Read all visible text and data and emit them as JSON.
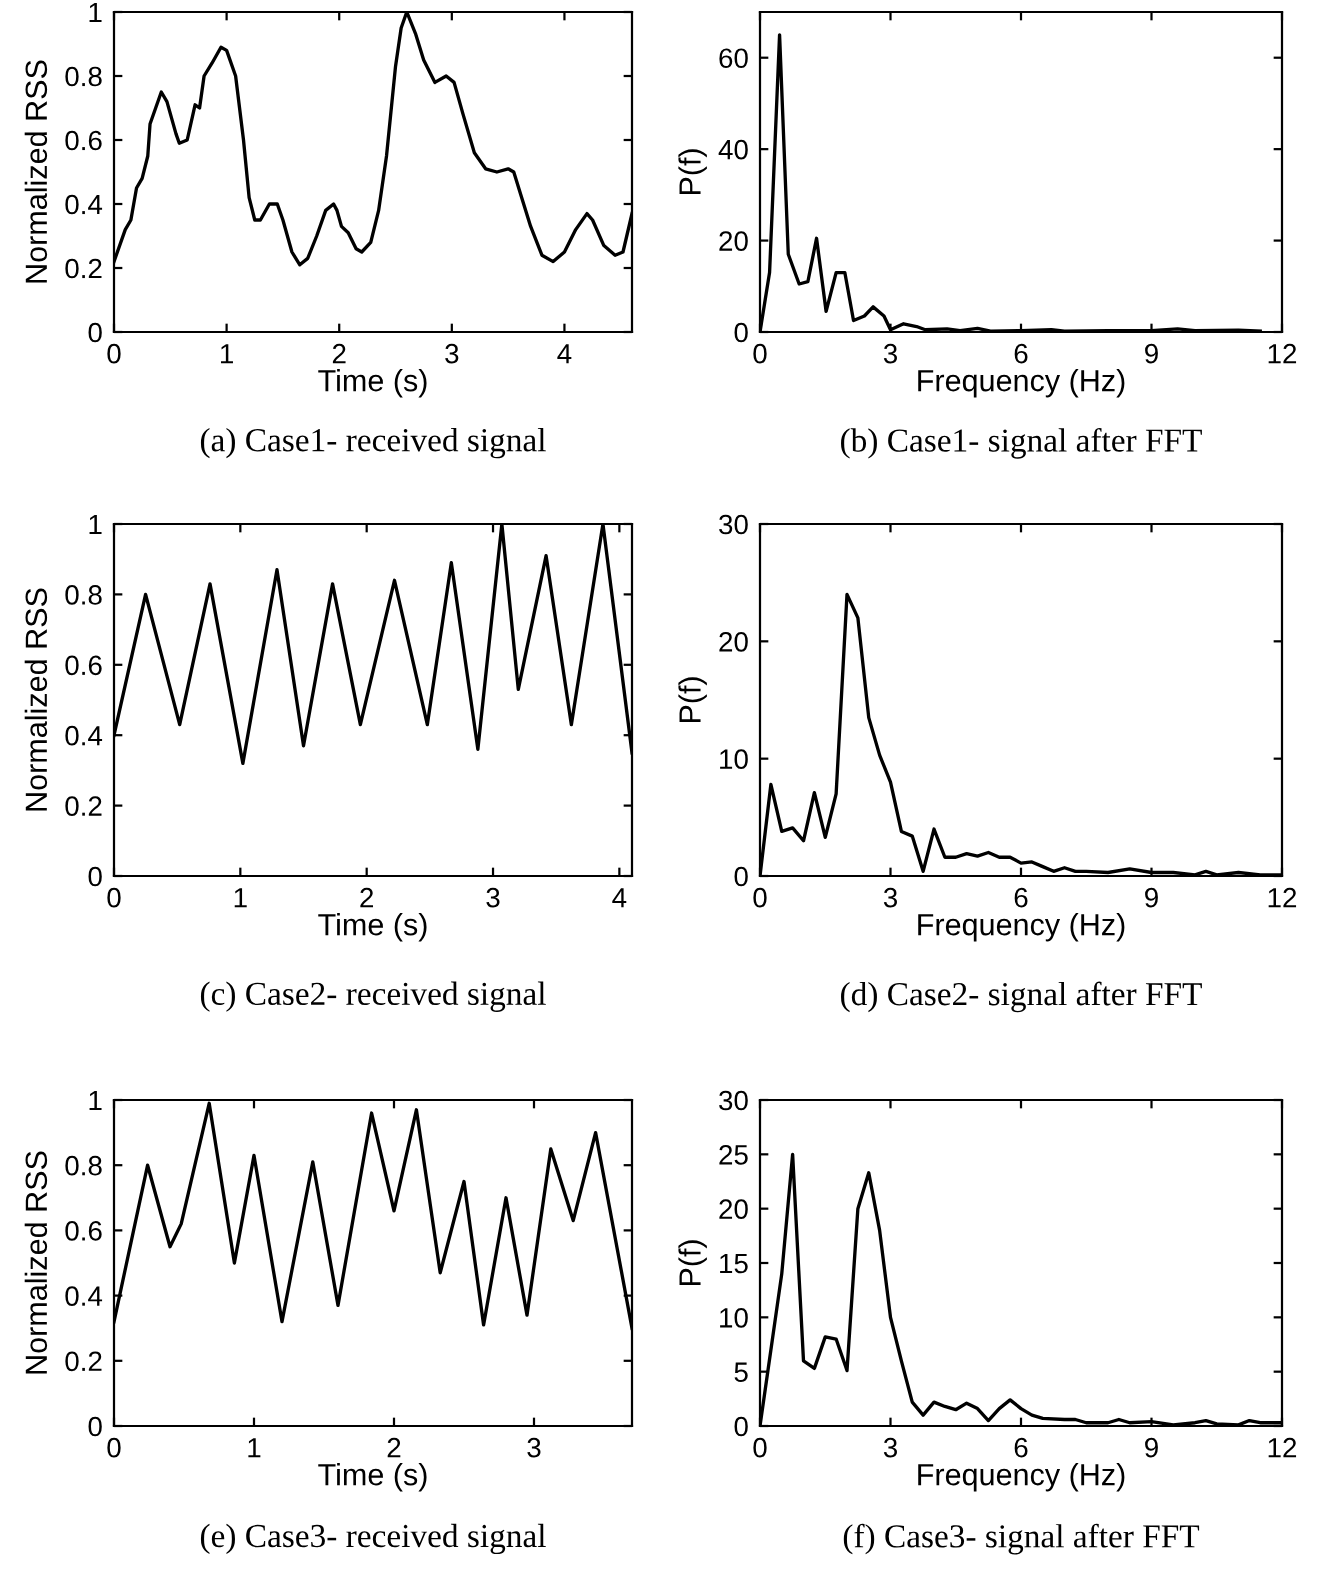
{
  "chart_data": [
    {
      "type": "line",
      "title": "(a) Case1- received signal",
      "xlabel": "Time (s)",
      "ylabel": "Normalized RSS",
      "xlim": [
        0,
        4.6
      ],
      "xticks": [
        0,
        1,
        2,
        3,
        4
      ],
      "ylim": [
        0,
        1
      ],
      "yticks": [
        0,
        0.2,
        0.4,
        0.6,
        0.8,
        1
      ],
      "series": [
        {
          "color": "#000000",
          "x": [
            0,
            0.1,
            0.15,
            0.2,
            0.25,
            0.3,
            0.32,
            0.37,
            0.42,
            0.47,
            0.55,
            0.58,
            0.65,
            0.72,
            0.76,
            0.8,
            0.87,
            0.95,
            1.0,
            1.08,
            1.15,
            1.2,
            1.25,
            1.3,
            1.38,
            1.45,
            1.5,
            1.58,
            1.65,
            1.72,
            1.8,
            1.88,
            1.95,
            1.98,
            2.02,
            2.08,
            2.15,
            2.2,
            2.28,
            2.35,
            2.42,
            2.5,
            2.55,
            2.6,
            2.68,
            2.75,
            2.85,
            2.95,
            3.02,
            3.1,
            3.2,
            3.3,
            3.4,
            3.5,
            3.55,
            3.62,
            3.7,
            3.8,
            3.9,
            4.0,
            4.1,
            4.2,
            4.25,
            4.35,
            4.45,
            4.52,
            4.6
          ],
          "values": [
            0.22,
            0.32,
            0.35,
            0.45,
            0.48,
            0.55,
            0.65,
            0.7,
            0.75,
            0.72,
            0.62,
            0.59,
            0.6,
            0.71,
            0.7,
            0.8,
            0.84,
            0.89,
            0.88,
            0.8,
            0.6,
            0.42,
            0.35,
            0.35,
            0.4,
            0.4,
            0.35,
            0.25,
            0.21,
            0.23,
            0.3,
            0.38,
            0.4,
            0.38,
            0.33,
            0.31,
            0.26,
            0.25,
            0.28,
            0.38,
            0.55,
            0.83,
            0.95,
            1.0,
            0.93,
            0.85,
            0.78,
            0.8,
            0.78,
            0.68,
            0.56,
            0.51,
            0.5,
            0.51,
            0.5,
            0.42,
            0.33,
            0.24,
            0.22,
            0.25,
            0.32,
            0.37,
            0.35,
            0.27,
            0.24,
            0.25,
            0.37
          ]
        }
      ]
    },
    {
      "type": "line",
      "title": "(b) Case1- signal after FFT",
      "xlabel": "Frequency (Hz)",
      "ylabel": "P(f)",
      "xlim": [
        0,
        12
      ],
      "xticks": [
        0,
        3,
        6,
        9,
        12
      ],
      "ylim": [
        0,
        70
      ],
      "yticks": [
        0,
        20,
        40,
        60
      ],
      "series": [
        {
          "color": "#000000",
          "x": [
            0,
            0.22,
            0.45,
            0.65,
            0.9,
            1.1,
            1.3,
            1.52,
            1.75,
            1.95,
            2.15,
            2.4,
            2.6,
            2.85,
            3.0,
            3.3,
            3.6,
            3.8,
            4.3,
            4.6,
            5.0,
            5.3,
            6,
            6.7,
            7,
            8,
            9,
            9.6,
            10,
            11,
            11.5
          ],
          "values": [
            0,
            13,
            65,
            17,
            10.5,
            11,
            20.5,
            4.5,
            13,
            13,
            2.5,
            3.5,
            5.5,
            3.5,
            0.5,
            1.8,
            1.2,
            0.5,
            0.7,
            0.3,
            0.8,
            0.2,
            0.3,
            0.5,
            0.2,
            0.3,
            0.3,
            0.7,
            0.3,
            0.4,
            0.2
          ]
        }
      ]
    },
    {
      "type": "line",
      "title": "(c) Case2- received signal",
      "xlabel": "Time (s)",
      "ylabel": "Normalized RSS",
      "xlim": [
        0,
        4.1
      ],
      "xticks": [
        0,
        1,
        2,
        3,
        4
      ],
      "ylim": [
        0,
        1
      ],
      "yticks": [
        0,
        0.2,
        0.4,
        0.6,
        0.8,
        1
      ],
      "series": [
        {
          "color": "#000000",
          "x": [
            0,
            0.25,
            0.52,
            0.76,
            1.02,
            1.29,
            1.5,
            1.73,
            1.95,
            2.22,
            2.48,
            2.67,
            2.88,
            3.07,
            3.2,
            3.42,
            3.62,
            3.87,
            4.1
          ],
          "values": [
            0.4,
            0.8,
            0.43,
            0.83,
            0.32,
            0.87,
            0.37,
            0.83,
            0.43,
            0.84,
            0.43,
            0.89,
            0.36,
            1.0,
            0.53,
            0.91,
            0.43,
            1.0,
            0.35
          ]
        }
      ]
    },
    {
      "type": "line",
      "title": "(d) Case2- signal after FFT",
      "xlabel": "Frequency (Hz)",
      "ylabel": "P(f)",
      "xlim": [
        0,
        12
      ],
      "xticks": [
        0,
        3,
        6,
        9,
        12
      ],
      "ylim": [
        0,
        30
      ],
      "yticks": [
        0,
        10,
        20,
        30
      ],
      "series": [
        {
          "color": "#000000",
          "x": [
            0,
            0.25,
            0.5,
            0.75,
            1.0,
            1.25,
            1.5,
            1.75,
            2.0,
            2.25,
            2.5,
            2.75,
            3.0,
            3.25,
            3.5,
            3.75,
            4.0,
            4.25,
            4.5,
            4.75,
            5.0,
            5.25,
            5.5,
            5.75,
            6.0,
            6.25,
            6.5,
            6.75,
            7.0,
            7.25,
            7.5,
            8,
            8.5,
            9,
            9.5,
            10,
            10.25,
            10.5,
            11,
            11.5,
            12
          ],
          "values": [
            0,
            7.8,
            3.8,
            4.1,
            3.0,
            7.1,
            3.3,
            7.0,
            24,
            22,
            13.5,
            10.3,
            8,
            3.8,
            3.4,
            0.4,
            4.0,
            1.6,
            1.6,
            1.9,
            1.7,
            2.0,
            1.6,
            1.6,
            1.1,
            1.2,
            0.8,
            0.4,
            0.7,
            0.4,
            0.4,
            0.3,
            0.6,
            0.3,
            0.3,
            0.1,
            0.4,
            0.1,
            0.3,
            0.1,
            0.1
          ]
        }
      ]
    },
    {
      "type": "line",
      "title": "(e) Case3- received signal",
      "xlabel": "Time (s)",
      "ylabel": "Normalized RSS",
      "xlim": [
        0,
        3.7
      ],
      "xticks": [
        0,
        1,
        2,
        3
      ],
      "ylim": [
        0,
        1
      ],
      "yticks": [
        0,
        0.2,
        0.4,
        0.6,
        0.8,
        1
      ],
      "series": [
        {
          "color": "#000000",
          "x": [
            0,
            0.24,
            0.4,
            0.48,
            0.68,
            0.86,
            1.0,
            1.2,
            1.42,
            1.6,
            1.84,
            2.0,
            2.16,
            2.33,
            2.5,
            2.64,
            2.8,
            2.95,
            3.12,
            3.28,
            3.44,
            3.7
          ],
          "values": [
            0.32,
            0.8,
            0.55,
            0.62,
            0.99,
            0.5,
            0.83,
            0.32,
            0.81,
            0.37,
            0.96,
            0.66,
            0.97,
            0.47,
            0.75,
            0.31,
            0.7,
            0.34,
            0.85,
            0.63,
            0.9,
            0.3
          ]
        }
      ]
    },
    {
      "type": "line",
      "title": "(f) Case3- signal after FFT",
      "xlabel": "Frequency (Hz)",
      "ylabel": "P(f)",
      "xlim": [
        0,
        12
      ],
      "xticks": [
        0,
        3,
        6,
        9,
        12
      ],
      "ylim": [
        0,
        30
      ],
      "yticks": [
        0,
        5,
        10,
        15,
        20,
        25,
        30
      ],
      "series": [
        {
          "color": "#000000",
          "x": [
            0,
            0.25,
            0.5,
            0.75,
            1.0,
            1.25,
            1.5,
            1.75,
            2.0,
            2.25,
            2.5,
            2.75,
            3.0,
            3.25,
            3.5,
            3.75,
            4.0,
            4.25,
            4.5,
            4.75,
            5.0,
            5.25,
            5.5,
            5.75,
            6.0,
            6.25,
            6.5,
            7,
            7.25,
            7.5,
            8,
            8.25,
            8.5,
            9,
            9.5,
            10,
            10.25,
            10.5,
            11,
            11.25,
            11.5,
            12
          ],
          "values": [
            0,
            7,
            14,
            25,
            6,
            5.3,
            8.2,
            8,
            5.1,
            20,
            23.3,
            18,
            10,
            6,
            2.2,
            1.0,
            2.2,
            1.8,
            1.5,
            2.1,
            1.6,
            0.5,
            1.6,
            2.4,
            1.6,
            1.0,
            0.7,
            0.6,
            0.6,
            0.3,
            0.3,
            0.6,
            0.3,
            0.4,
            0.1,
            0.3,
            0.5,
            0.2,
            0.1,
            0.5,
            0.3,
            0.3
          ]
        }
      ]
    }
  ]
}
